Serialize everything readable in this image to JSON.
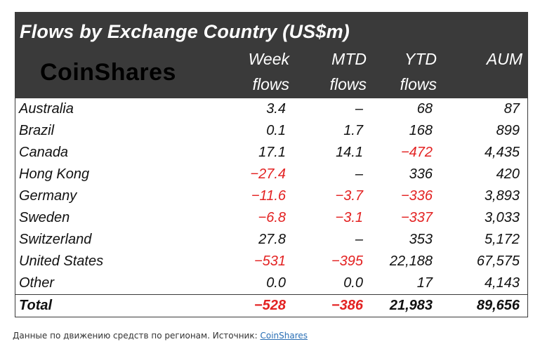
{
  "title": "Flows by Exchange Country (US$m)",
  "logo_text": "CoinShares",
  "columns": [
    {
      "line1": "Week",
      "line2": "flows"
    },
    {
      "line1": "MTD",
      "line2": "flows"
    },
    {
      "line1": "YTD",
      "line2": "flows"
    },
    {
      "line1": "",
      "line2": "AUM"
    }
  ],
  "colors": {
    "header_bg": "#3a3a3a",
    "negative": "#e32222",
    "text": "#111111"
  },
  "chart_data": {
    "type": "table",
    "title": "Flows by Exchange Country (US$m)",
    "columns": [
      "Week flows",
      "MTD flows",
      "YTD flows",
      "AUM"
    ],
    "rows": [
      {
        "country": "Australia",
        "week": "3.4",
        "mtd": "-",
        "ytd": "68",
        "aum": "87"
      },
      {
        "country": "Brazil",
        "week": "0.1",
        "mtd": "1.7",
        "ytd": "168",
        "aum": "899"
      },
      {
        "country": "Canada",
        "week": "17.1",
        "mtd": "14.1",
        "ytd": "-472",
        "aum": "4,435"
      },
      {
        "country": "Hong Kong",
        "week": "-27.4",
        "mtd": "-",
        "ytd": "336",
        "aum": "420"
      },
      {
        "country": "Germany",
        "week": "-11.6",
        "mtd": "-3.7",
        "ytd": "-336",
        "aum": "3,893"
      },
      {
        "country": "Sweden",
        "week": "-6.8",
        "mtd": "-3.1",
        "ytd": "-337",
        "aum": "3,033"
      },
      {
        "country": "Switzerland",
        "week": "27.8",
        "mtd": "-",
        "ytd": "353",
        "aum": "5,172"
      },
      {
        "country": "United States",
        "week": "-531",
        "mtd": "-395",
        "ytd": "22,188",
        "aum": "67,575"
      },
      {
        "country": "Other",
        "week": "0.0",
        "mtd": "0.0",
        "ytd": "17",
        "aum": "4,143"
      }
    ],
    "total": {
      "country": "Total",
      "week": "-528",
      "mtd": "-386",
      "ytd": "21,983",
      "aum": "89,656"
    }
  },
  "caption": {
    "text": "Данные по движению средств по регионам. Источник: ",
    "link": "CoinShares"
  }
}
